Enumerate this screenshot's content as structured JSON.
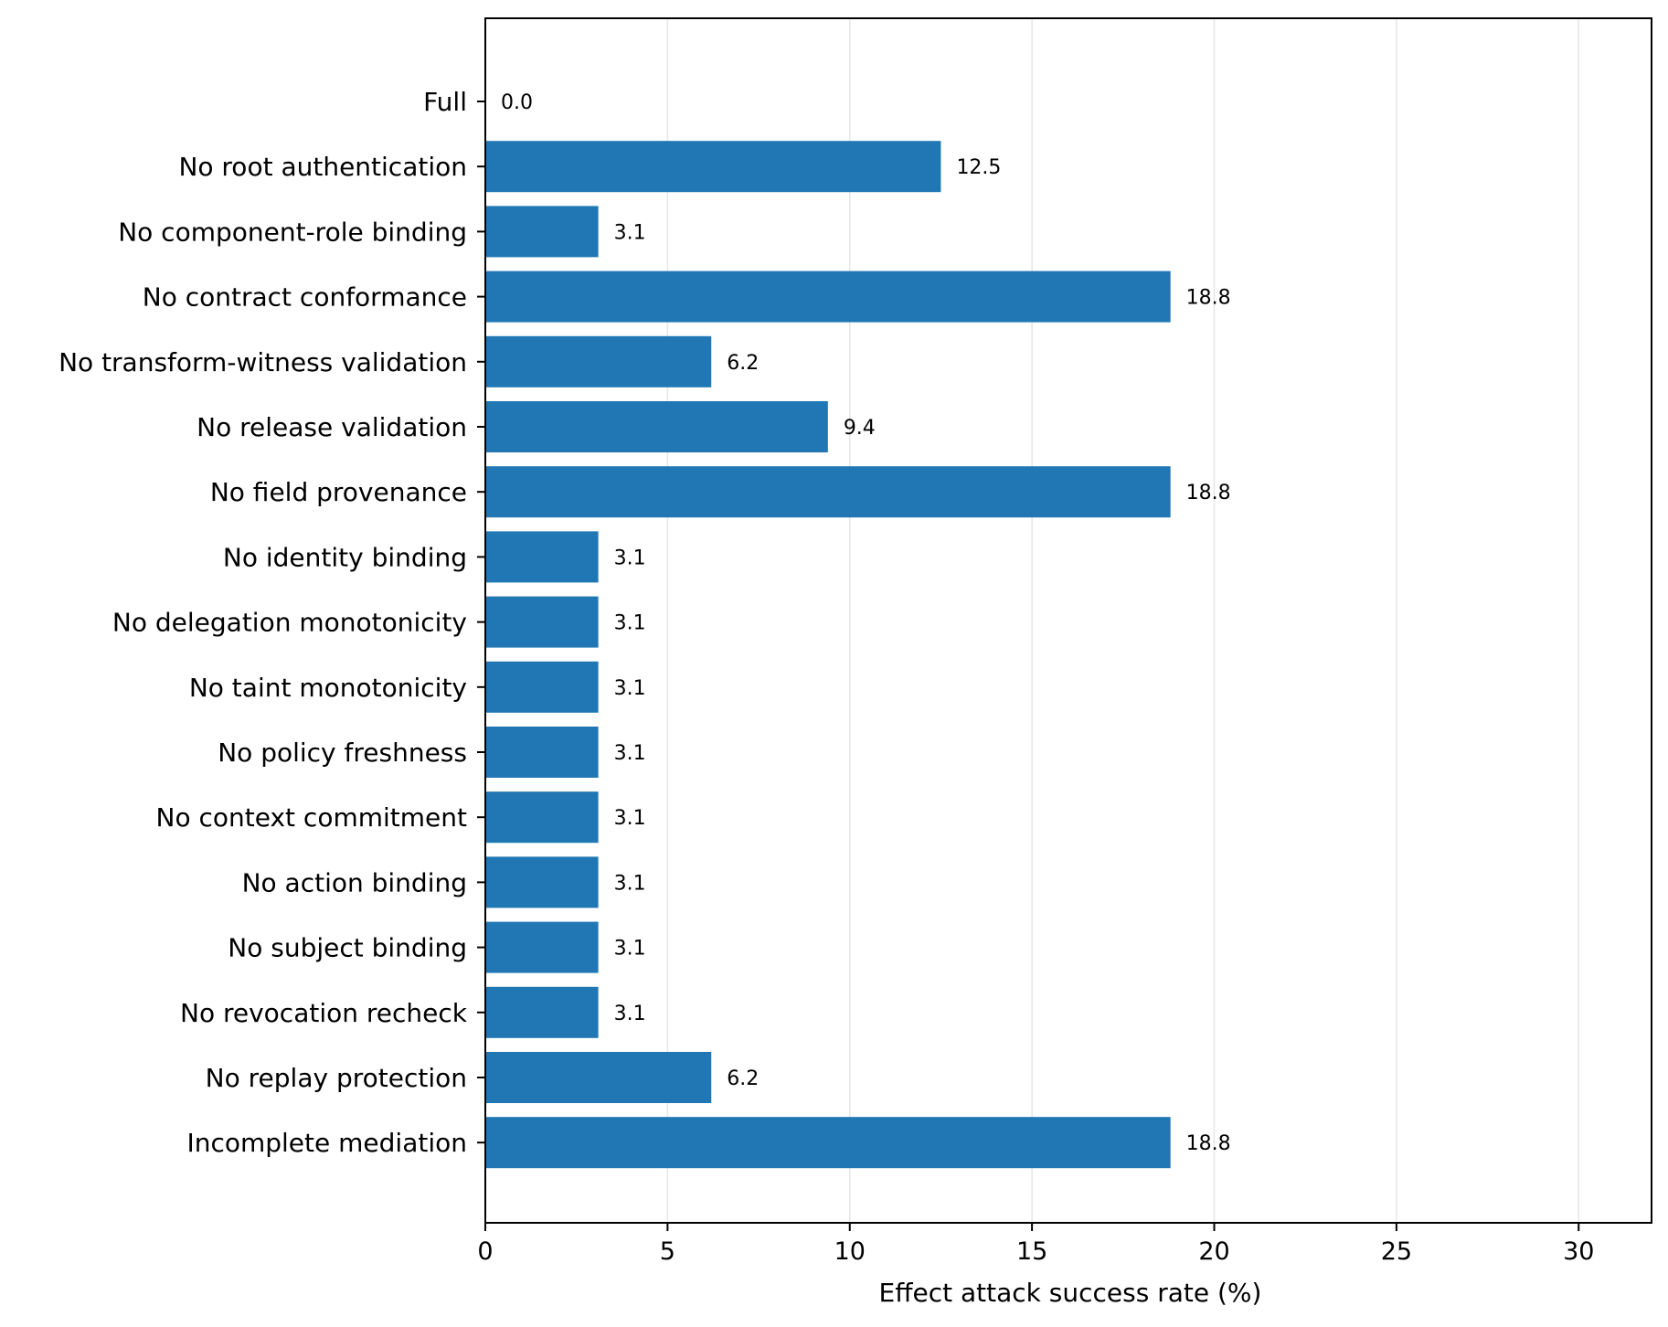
{
  "chart_data": {
    "type": "bar",
    "orientation": "horizontal",
    "categories": [
      "Full",
      "No root authentication",
      "No component-role binding",
      "No contract conformance",
      "No transform-witness validation",
      "No release validation",
      "No field provenance",
      "No identity binding",
      "No delegation monotonicity",
      "No taint monotonicity",
      "No policy freshness",
      "No context commitment",
      "No action binding",
      "No subject binding",
      "No revocation recheck",
      "No replay protection",
      "Incomplete mediation"
    ],
    "values": [
      0.0,
      12.5,
      3.1,
      18.8,
      6.2,
      9.4,
      18.8,
      3.1,
      3.1,
      3.1,
      3.1,
      3.1,
      3.1,
      3.1,
      3.1,
      6.2,
      18.8
    ],
    "value_labels": [
      "0.0",
      "12.5",
      "3.1",
      "18.8",
      "6.2",
      "9.4",
      "18.8",
      "3.1",
      "3.1",
      "3.1",
      "3.1",
      "3.1",
      "3.1",
      "3.1",
      "3.1",
      "6.2",
      "18.8"
    ],
    "xlabel": "Effect attack success rate (%)",
    "ylabel": "",
    "title": "",
    "xlim": [
      0,
      32
    ],
    "xticks": [
      0,
      5,
      10,
      15,
      20,
      25,
      30
    ],
    "xtick_labels": [
      "0",
      "5",
      "10",
      "15",
      "20",
      "25",
      "30"
    ],
    "grid": "vertical",
    "legend": "none",
    "colors": {
      "bar": "#2077b4",
      "grid": "#e6e6e6",
      "axis": "#000000",
      "text": "#000000"
    }
  }
}
